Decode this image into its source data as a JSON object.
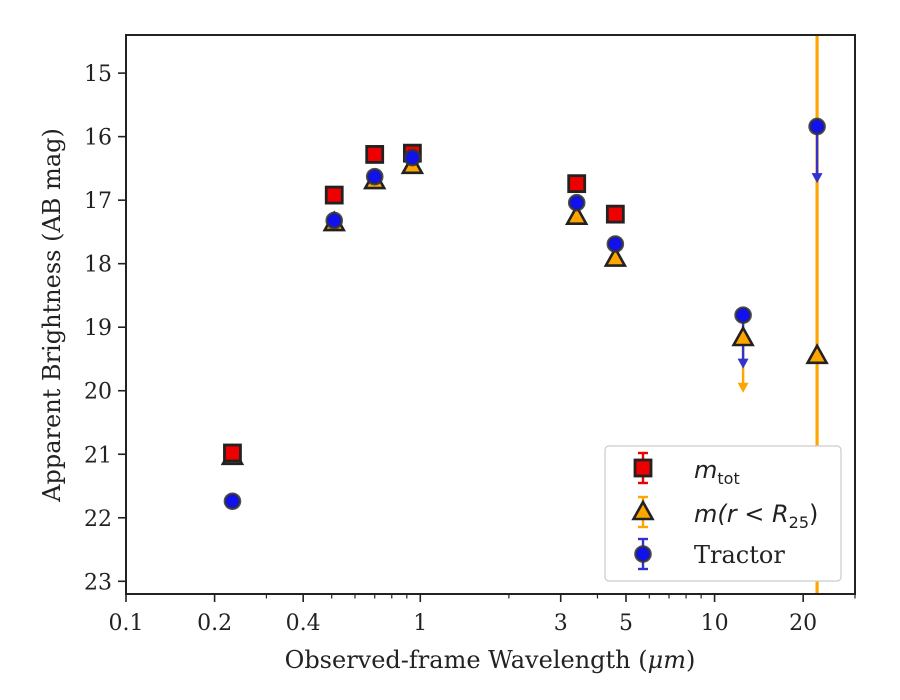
{
  "chart_data": {
    "type": "scatter",
    "xlabel": "Observed-frame Wavelength (μm)",
    "xlabel_prefix": "Observed-frame Wavelength (",
    "xlabel_unit": "μm",
    "xlabel_suffix": ")",
    "ylabel": "Apparent Brightness (AB mag)",
    "x_scale": "log",
    "xlim": [
      0.1,
      30
    ],
    "ylim": [
      23.2,
      14.4
    ],
    "y_inverted": true,
    "grid": false,
    "legend_position": "lower-right",
    "x_ticks": [
      {
        "value": 0.1,
        "label": "0.1"
      },
      {
        "value": 0.2,
        "label": "0.2"
      },
      {
        "value": 0.4,
        "label": "0.4"
      },
      {
        "value": 1,
        "label": "1"
      },
      {
        "value": 3,
        "label": "3"
      },
      {
        "value": 5,
        "label": "5"
      },
      {
        "value": 10,
        "label": "10"
      },
      {
        "value": 20,
        "label": "20"
      }
    ],
    "y_ticks": [
      {
        "value": 15,
        "label": "15"
      },
      {
        "value": 16,
        "label": "16"
      },
      {
        "value": 17,
        "label": "17"
      },
      {
        "value": 18,
        "label": "18"
      },
      {
        "value": 19,
        "label": "19"
      },
      {
        "value": 20,
        "label": "20"
      },
      {
        "value": 21,
        "label": "21"
      },
      {
        "value": 22,
        "label": "22"
      },
      {
        "value": 23,
        "label": "23"
      }
    ],
    "series": [
      {
        "name": "m_tot",
        "legend_main": "m",
        "legend_sub": "tot",
        "marker": "square",
        "color": "#ee0000",
        "edge_color": "#222222",
        "points": [
          {
            "x": 0.23,
            "y": 20.98
          },
          {
            "x": 0.51,
            "y": 16.92
          },
          {
            "x": 0.7,
            "y": 16.28
          },
          {
            "x": 0.94,
            "y": 16.26
          },
          {
            "x": 3.4,
            "y": 16.74
          },
          {
            "x": 4.6,
            "y": 17.22
          }
        ]
      },
      {
        "name": "m(r < R25)",
        "legend_main": "m(r < R",
        "legend_sub": "25",
        "legend_tail": ")",
        "marker": "triangle",
        "color": "#ffa500",
        "edge_color": "#222222",
        "points": [
          {
            "x": 0.23,
            "y": 21.04
          },
          {
            "x": 0.51,
            "y": 17.36
          },
          {
            "x": 0.7,
            "y": 16.7
          },
          {
            "x": 0.94,
            "y": 16.46
          },
          {
            "x": 3.4,
            "y": 17.26
          },
          {
            "x": 4.6,
            "y": 17.92
          },
          {
            "x": 12.5,
            "y": 19.17,
            "upper_limit_to": 20.0
          },
          {
            "x": 22.3,
            "y": 19.45
          }
        ]
      },
      {
        "name": "Tractor",
        "marker": "circle",
        "color": "#1111ee",
        "edge_color": "#333333",
        "points": [
          {
            "x": 0.23,
            "y": 21.74
          },
          {
            "x": 0.51,
            "y": 17.32
          },
          {
            "x": 0.7,
            "y": 16.63
          },
          {
            "x": 0.94,
            "y": 16.33
          },
          {
            "x": 3.4,
            "y": 17.04
          },
          {
            "x": 4.6,
            "y": 17.69
          },
          {
            "x": 12.5,
            "y": 18.81,
            "upper_limit_to": 19.62
          },
          {
            "x": 22.3,
            "y": 15.84,
            "upper_limit_to": 16.7
          }
        ]
      }
    ],
    "vertical_line": {
      "x": 22.3,
      "color": "#ffa500"
    }
  }
}
